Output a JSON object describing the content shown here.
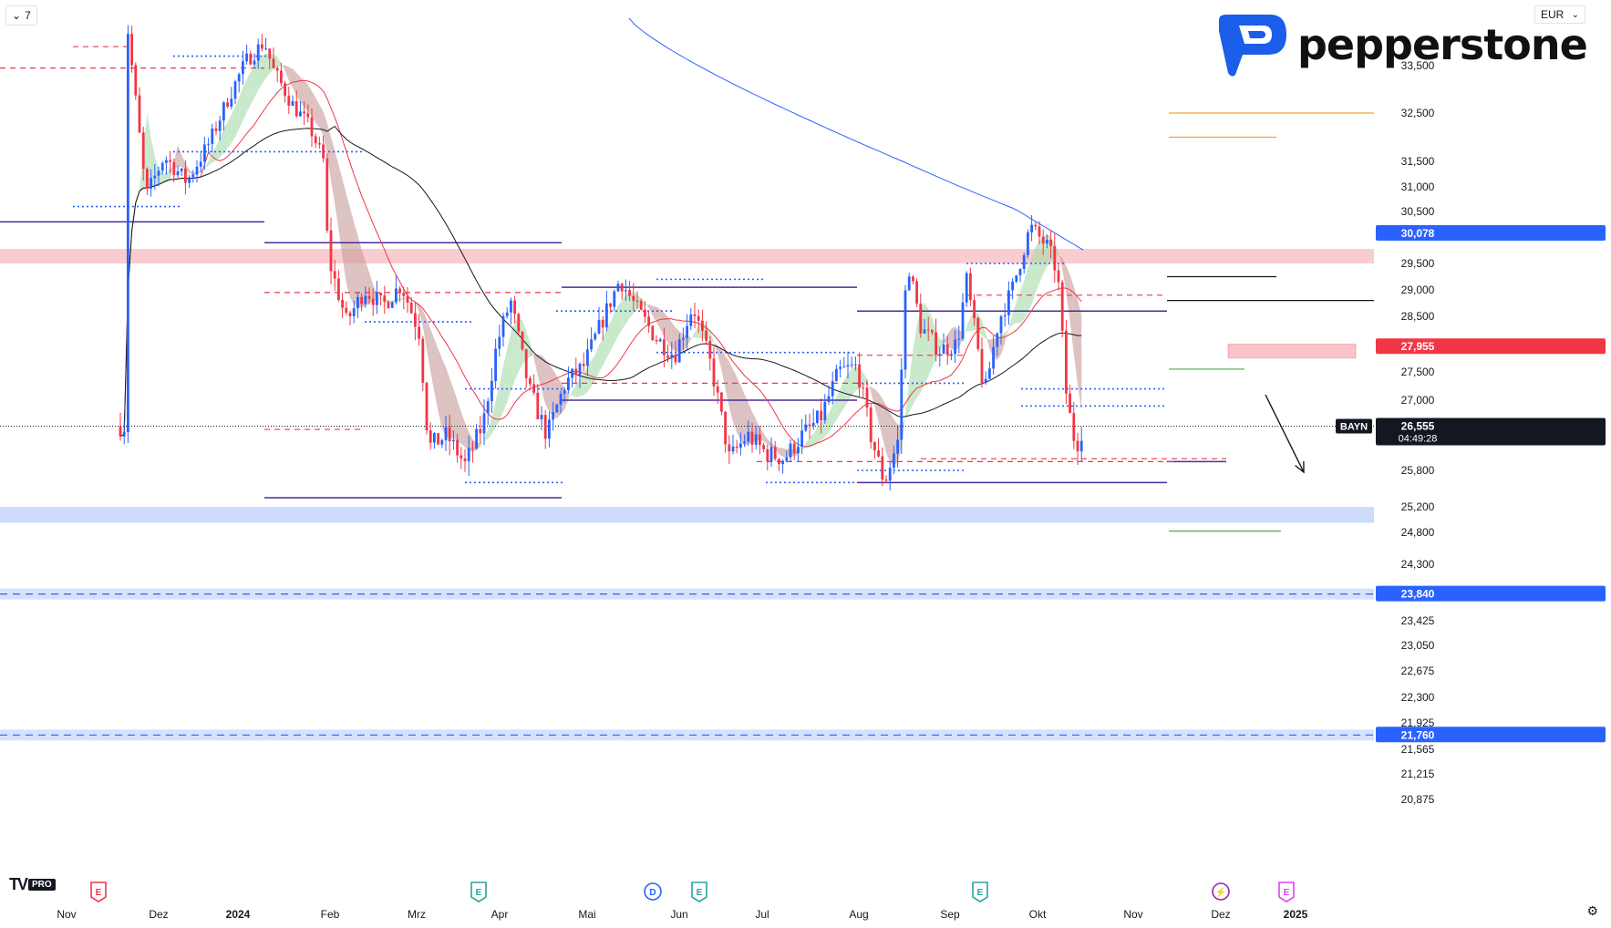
{
  "toolbar": {
    "interval_label": "7",
    "currency": "EUR"
  },
  "brand": {
    "name": "pepperstone"
  },
  "tradingview": {
    "logo_text": "TV",
    "badge": "PRO"
  },
  "colors": {
    "up": "#2962ff",
    "down": "#f23645",
    "ema_fast": "#f23645",
    "ma_mid": "#131722",
    "ma_slow": "#2962ff",
    "resist_zone": "#f8c4c8",
    "support_zone": "#c5d6fb",
    "level_purple": "#4a2c9b",
    "price_dotted": "#131722",
    "blue_dotted": "#2962ff",
    "red_dashed": "#f23645",
    "target_orange": "#f5a623",
    "target_green": "#4caf50"
  },
  "chart_data": {
    "type": "candlestick",
    "symbol": "BAYN",
    "currency": "EUR",
    "y_ticks": [
      "33,500",
      "32,500",
      "31,500",
      "31,000",
      "30,500",
      "29,500",
      "29,000",
      "28,500",
      "27,500",
      "27,000",
      "25,800",
      "25,200",
      "24,800",
      "24,300",
      "23,425",
      "23,050",
      "22,675",
      "22,300",
      "21,925",
      "21,565",
      "21,215",
      "20,875"
    ],
    "x_ticks": [
      "Nov",
      "Dez",
      "2024",
      "Feb",
      "Mrz",
      "Apr",
      "Mai",
      "Jun",
      "Jul",
      "Aug",
      "Sep",
      "Okt",
      "Nov",
      "Dez",
      "2025"
    ],
    "price_labels": [
      {
        "value": "30,078",
        "color": "#2962ff"
      },
      {
        "value": "27,955",
        "color": "#f23645"
      },
      {
        "value": "26,555",
        "time": "04:49:28",
        "color": "#131722",
        "symbol": "BAYN"
      },
      {
        "value": "23,840",
        "color": "#2962ff"
      },
      {
        "value": "21,760",
        "color": "#2962ff"
      }
    ],
    "zones": [
      {
        "name": "resistance",
        "from": 29.5,
        "to": 29.78
      },
      {
        "name": "support",
        "from": 24.95,
        "to": 25.2
      }
    ],
    "events": [
      "E",
      "E",
      "D",
      "E",
      "E",
      "spark",
      "E"
    ],
    "last_price": 26.555
  }
}
